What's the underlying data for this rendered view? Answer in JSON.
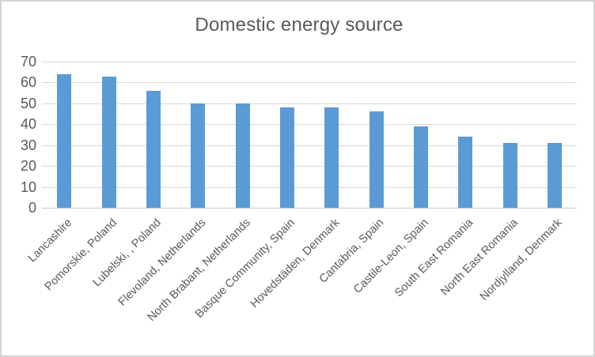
{
  "chart_data": {
    "type": "bar",
    "title": "Domestic energy source",
    "categories": [
      "Lancashire",
      "Pomorskie, Poland",
      "Lubelski, , Poland",
      "Flevoland, Netherlands",
      "North Brabant, Netherlands",
      "Basque Community, Spain",
      "Hovedstäden, Denmark",
      "Cantabria, Spain",
      "Castile-Leon, Spain",
      "South East Romania",
      "North East Romania",
      "Nordjylland, Denmark"
    ],
    "values": [
      64,
      63,
      56,
      50,
      50,
      48,
      48,
      46,
      39,
      34,
      31,
      31
    ],
    "xlabel": "",
    "ylabel": "",
    "ylim": [
      0,
      70
    ],
    "yticks": [
      0,
      10,
      20,
      30,
      40,
      50,
      60,
      70
    ],
    "grid": true,
    "legend": false,
    "x_label_rotation_deg": -45,
    "colors": {
      "bar": "#5b9bd5",
      "gridline": "#d9d9d9",
      "axis_line": "#c6c6c6",
      "text": "#595959",
      "chart_border": "#d4d4d4",
      "background": "#ffffff"
    }
  }
}
